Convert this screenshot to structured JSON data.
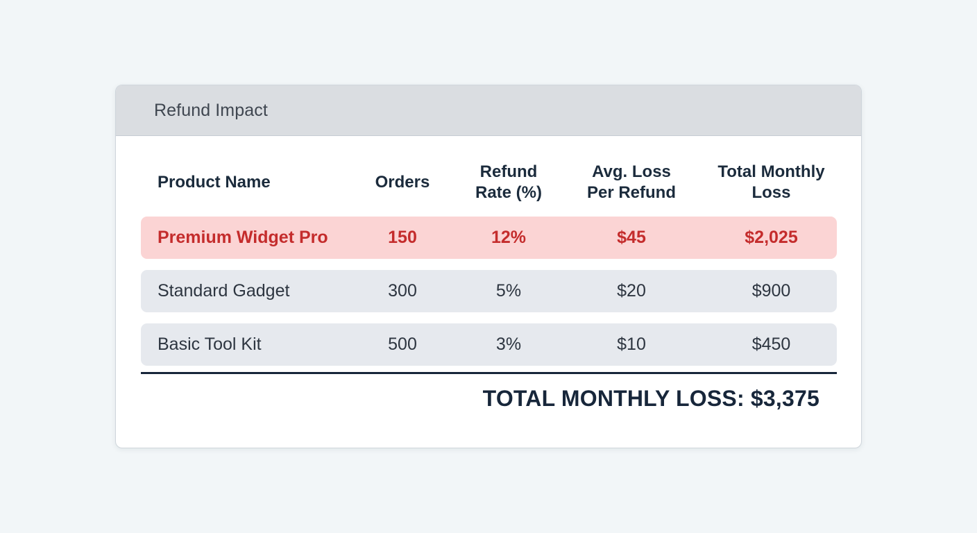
{
  "card": {
    "title": "Refund Impact"
  },
  "table": {
    "columns": [
      "Product Name",
      "Orders",
      "Refund\nRate (%)",
      "Avg. Loss\nPer Refund",
      "Total Monthly\nLoss"
    ],
    "rows": [
      {
        "product": "Premium Widget Pro",
        "orders": "150",
        "refund_rate": "12%",
        "avg_loss": "$45",
        "total_loss": "$2,025",
        "highlighted": true
      },
      {
        "product": "Standard Gadget",
        "orders": "300",
        "refund_rate": "5%",
        "avg_loss": "$20",
        "total_loss": "$900",
        "highlighted": false
      },
      {
        "product": "Basic Tool Kit",
        "orders": "500",
        "refund_rate": "3%",
        "avg_loss": "$10",
        "total_loss": "$450",
        "highlighted": false
      }
    ],
    "total_label": "TOTAL MONTHLY LOSS: $3,375"
  },
  "colors": {
    "background": "#f2f6f8",
    "header_bar": "#dadde1",
    "highlight_row_bg": "#fbd4d4",
    "highlight_row_text": "#c42c2c",
    "normal_row_bg": "#e6e9ee",
    "heading_text": "#1b2b3c",
    "divider": "#17263a"
  }
}
